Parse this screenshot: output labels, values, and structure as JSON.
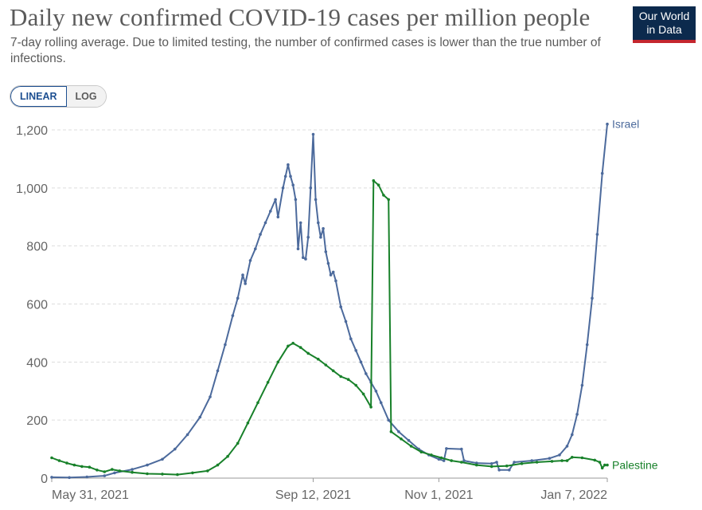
{
  "header": {
    "title": "Daily new confirmed COVID-19 cases per million people",
    "subtitle": "7-day rolling average. Due to limited testing, the number of confirmed cases is lower than the true number of infections."
  },
  "logo": {
    "line1": "Our World",
    "line2": "in Data"
  },
  "controls": {
    "linear_label": "LINEAR",
    "log_label": "LOG",
    "active": "LINEAR"
  },
  "colors": {
    "israel": "#4c6a9c",
    "palestine": "#18812a",
    "grid": "#dddddd",
    "axis": "#999999"
  },
  "chart_data": {
    "type": "line",
    "title": "Daily new confirmed COVID-19 cases per million people",
    "subtitle": "7-day rolling average. Due to limited testing, the number of confirmed cases is lower than the true number of infections.",
    "xlabel": "",
    "ylabel": "",
    "ylim": [
      0,
      1200
    ],
    "xlim": [
      "2021-05-31",
      "2022-01-07"
    ],
    "y_ticks": [
      0,
      200,
      400,
      600,
      800,
      1000,
      1200
    ],
    "y_tick_labels": [
      "0",
      "200",
      "400",
      "600",
      "800",
      "1,000",
      "1,200"
    ],
    "x_ticks": [
      "2021-05-31",
      "2021-09-12",
      "2021-11-01",
      "2022-01-07"
    ],
    "x_tick_labels": [
      "May 31, 2021",
      "Sep 12, 2021",
      "Nov 1, 2021",
      "Jan 7, 2022"
    ],
    "grid": "horizontal dashed",
    "legend": "labels at line ends (right)",
    "series": [
      {
        "name": "Israel",
        "points": [
          [
            "2021-05-31",
            3
          ],
          [
            "2021-06-07",
            2
          ],
          [
            "2021-06-14",
            4
          ],
          [
            "2021-06-21",
            8
          ],
          [
            "2021-06-25",
            18
          ],
          [
            "2021-07-02",
            30
          ],
          [
            "2021-07-08",
            45
          ],
          [
            "2021-07-14",
            65
          ],
          [
            "2021-07-19",
            100
          ],
          [
            "2021-07-24",
            150
          ],
          [
            "2021-07-29",
            210
          ],
          [
            "2021-08-02",
            280
          ],
          [
            "2021-08-05",
            370
          ],
          [
            "2021-08-08",
            460
          ],
          [
            "2021-08-11",
            560
          ],
          [
            "2021-08-13",
            620
          ],
          [
            "2021-08-15",
            700
          ],
          [
            "2021-08-16",
            670
          ],
          [
            "2021-08-18",
            750
          ],
          [
            "2021-08-20",
            790
          ],
          [
            "2021-08-22",
            840
          ],
          [
            "2021-08-24",
            880
          ],
          [
            "2021-08-26",
            920
          ],
          [
            "2021-08-28",
            960
          ],
          [
            "2021-08-29",
            900
          ],
          [
            "2021-08-31",
            1000
          ],
          [
            "2021-09-01",
            1040
          ],
          [
            "2021-09-02",
            1080
          ],
          [
            "2021-09-03",
            1040
          ],
          [
            "2021-09-04",
            1010
          ],
          [
            "2021-09-05",
            960
          ],
          [
            "2021-09-06",
            790
          ],
          [
            "2021-09-07",
            880
          ],
          [
            "2021-09-08",
            760
          ],
          [
            "2021-09-09",
            755
          ],
          [
            "2021-09-10",
            830
          ],
          [
            "2021-09-11",
            1000
          ],
          [
            "2021-09-12",
            1185
          ],
          [
            "2021-09-13",
            960
          ],
          [
            "2021-09-14",
            880
          ],
          [
            "2021-09-15",
            830
          ],
          [
            "2021-09-16",
            860
          ],
          [
            "2021-09-17",
            780
          ],
          [
            "2021-09-18",
            740
          ],
          [
            "2021-09-19",
            700
          ],
          [
            "2021-09-20",
            710
          ],
          [
            "2021-09-21",
            680
          ],
          [
            "2021-09-23",
            590
          ],
          [
            "2021-09-25",
            540
          ],
          [
            "2021-09-27",
            480
          ],
          [
            "2021-09-29",
            440
          ],
          [
            "2021-10-01",
            400
          ],
          [
            "2021-10-03",
            360
          ],
          [
            "2021-10-05",
            330
          ],
          [
            "2021-10-07",
            300
          ],
          [
            "2021-10-09",
            260
          ],
          [
            "2021-10-12",
            200
          ],
          [
            "2021-10-16",
            160
          ],
          [
            "2021-10-20",
            130
          ],
          [
            "2021-10-24",
            100
          ],
          [
            "2021-10-28",
            80
          ],
          [
            "2021-11-01",
            65
          ],
          [
            "2021-11-03",
            60
          ],
          [
            "2021-11-04",
            102
          ],
          [
            "2021-11-10",
            100
          ],
          [
            "2021-11-11",
            60
          ],
          [
            "2021-11-16",
            52
          ],
          [
            "2021-11-22",
            50
          ],
          [
            "2021-11-24",
            55
          ],
          [
            "2021-11-25",
            28
          ],
          [
            "2021-11-29",
            28
          ],
          [
            "2021-12-01",
            55
          ],
          [
            "2021-12-08",
            60
          ],
          [
            "2021-12-15",
            68
          ],
          [
            "2021-12-19",
            80
          ],
          [
            "2021-12-22",
            110
          ],
          [
            "2021-12-24",
            150
          ],
          [
            "2021-12-26",
            220
          ],
          [
            "2021-12-28",
            320
          ],
          [
            "2021-12-30",
            460
          ],
          [
            "2022-01-01",
            620
          ],
          [
            "2022-01-03",
            840
          ],
          [
            "2022-01-05",
            1050
          ],
          [
            "2022-01-07",
            1220
          ]
        ]
      },
      {
        "name": "Palestine",
        "points": [
          [
            "2021-05-31",
            70
          ],
          [
            "2021-06-03",
            60
          ],
          [
            "2021-06-06",
            52
          ],
          [
            "2021-06-09",
            45
          ],
          [
            "2021-06-12",
            40
          ],
          [
            "2021-06-15",
            38
          ],
          [
            "2021-06-18",
            28
          ],
          [
            "2021-06-21",
            22
          ],
          [
            "2021-06-24",
            30
          ],
          [
            "2021-06-27",
            25
          ],
          [
            "2021-07-02",
            20
          ],
          [
            "2021-07-08",
            15
          ],
          [
            "2021-07-14",
            14
          ],
          [
            "2021-07-20",
            12
          ],
          [
            "2021-07-26",
            18
          ],
          [
            "2021-08-01",
            25
          ],
          [
            "2021-08-05",
            45
          ],
          [
            "2021-08-09",
            75
          ],
          [
            "2021-08-13",
            120
          ],
          [
            "2021-08-17",
            190
          ],
          [
            "2021-08-21",
            260
          ],
          [
            "2021-08-25",
            330
          ],
          [
            "2021-08-29",
            400
          ],
          [
            "2021-09-02",
            455
          ],
          [
            "2021-09-04",
            465
          ],
          [
            "2021-09-07",
            450
          ],
          [
            "2021-09-10",
            430
          ],
          [
            "2021-09-14",
            410
          ],
          [
            "2021-09-17",
            390
          ],
          [
            "2021-09-20",
            370
          ],
          [
            "2021-09-23",
            350
          ],
          [
            "2021-09-26",
            340
          ],
          [
            "2021-09-29",
            320
          ],
          [
            "2021-10-02",
            290
          ],
          [
            "2021-10-05",
            245
          ],
          [
            "2021-10-06",
            1025
          ],
          [
            "2021-10-08",
            1010
          ],
          [
            "2021-10-10",
            975
          ],
          [
            "2021-10-12",
            960
          ],
          [
            "2021-10-13",
            160
          ],
          [
            "2021-10-17",
            135
          ],
          [
            "2021-10-21",
            110
          ],
          [
            "2021-10-25",
            90
          ],
          [
            "2021-10-29",
            80
          ],
          [
            "2021-11-02",
            70
          ],
          [
            "2021-11-06",
            60
          ],
          [
            "2021-11-10",
            55
          ],
          [
            "2021-11-16",
            45
          ],
          [
            "2021-11-22",
            40
          ],
          [
            "2021-11-28",
            42
          ],
          [
            "2021-12-04",
            50
          ],
          [
            "2021-12-10",
            55
          ],
          [
            "2021-12-16",
            58
          ],
          [
            "2021-12-20",
            60
          ],
          [
            "2021-12-22",
            60
          ],
          [
            "2021-12-24",
            72
          ],
          [
            "2021-12-28",
            70
          ],
          [
            "2022-01-02",
            62
          ],
          [
            "2022-01-04",
            55
          ],
          [
            "2022-01-05",
            35
          ],
          [
            "2022-01-06",
            45
          ],
          [
            "2022-01-07",
            45
          ]
        ]
      }
    ]
  }
}
